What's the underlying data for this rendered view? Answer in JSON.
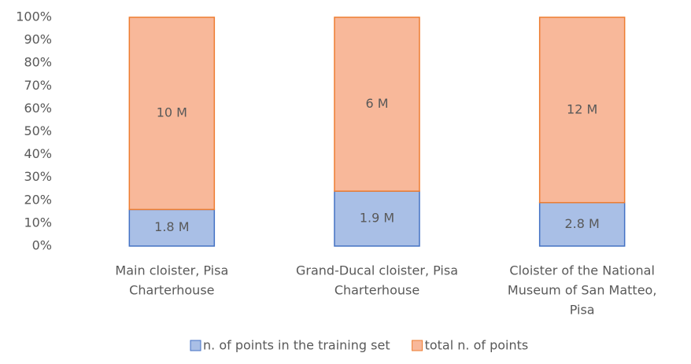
{
  "chart_data": {
    "type": "stacked_bar",
    "categories": [
      [
        "Main cloister, Pisa",
        "Charterhouse"
      ],
      [
        "Grand-Ducal cloister, Pisa",
        "Charterhouse"
      ],
      [
        "Cloister of the National",
        "Museum of San Matteo,",
        "Pisa"
      ]
    ],
    "series": [
      {
        "name": "n. of points in the training set",
        "color": "#a9bfe6",
        "edge": "#4472c4",
        "values": [
          16,
          24,
          19
        ],
        "point_labels": [
          "1.8 M",
          "1.9 M",
          "2.8 M"
        ]
      },
      {
        "name": "total n. of points",
        "color": "#f8b89a",
        "edge": "#ed7d31",
        "values": [
          84,
          76,
          81
        ],
        "point_labels": [
          "10 M",
          "6 M",
          "12 M"
        ]
      }
    ],
    "ylim": [
      0,
      100
    ],
    "yticks": [
      {
        "value": 0,
        "label": "0%"
      },
      {
        "value": 10,
        "label": "10%"
      },
      {
        "value": 20,
        "label": "20%"
      },
      {
        "value": 30,
        "label": "30%"
      },
      {
        "value": 40,
        "label": "40%"
      },
      {
        "value": 50,
        "label": "50%"
      },
      {
        "value": 60,
        "label": "60%"
      },
      {
        "value": 70,
        "label": "70%"
      },
      {
        "value": 80,
        "label": "80%"
      },
      {
        "value": 90,
        "label": "90%"
      },
      {
        "value": 100,
        "label": "100%"
      }
    ],
    "grid": false,
    "legend": "bottom"
  }
}
